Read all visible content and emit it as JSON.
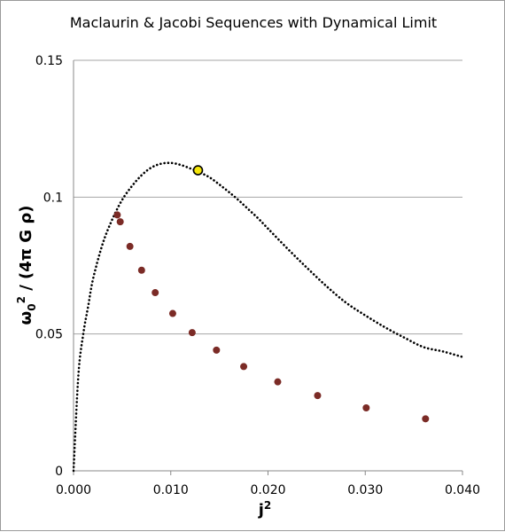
{
  "chart_data": {
    "type": "scatter",
    "title": "Maclaurin & Jacobi Sequences with Dynamical Limit",
    "xlabel": "j",
    "xlabel_sup": "2",
    "ylabel": "ω",
    "ylabel_sub": "0",
    "ylabel_sup": "2",
    "ylabel_rest": " / (4π G ρ)",
    "xlim": [
      0,
      0.04
    ],
    "ylim": [
      0,
      0.15
    ],
    "x_ticks": [
      {
        "value": 0.0,
        "label": "0.000"
      },
      {
        "value": 0.01,
        "label": "0.010"
      },
      {
        "value": 0.02,
        "label": "0.020"
      },
      {
        "value": 0.03,
        "label": "0.030"
      },
      {
        "value": 0.04,
        "label": "0.040"
      }
    ],
    "y_ticks": [
      {
        "value": 0,
        "label": "0"
      },
      {
        "value": 0.05,
        "label": "0.05"
      },
      {
        "value": 0.1,
        "label": "0.1"
      },
      {
        "value": 0.15,
        "label": "0.15"
      }
    ],
    "grid": "horizontal",
    "series": [
      {
        "style": "dotted-line",
        "color": "#000000",
        "points": [
          [
            0.0,
            0.0
          ],
          [
            0.0005,
            0.035
          ],
          [
            0.001,
            0.05
          ],
          [
            0.0015,
            0.06
          ],
          [
            0.002,
            0.07
          ],
          [
            0.003,
            0.083
          ],
          [
            0.004,
            0.092
          ],
          [
            0.005,
            0.099
          ],
          [
            0.006,
            0.104
          ],
          [
            0.007,
            0.108
          ],
          [
            0.008,
            0.1108
          ],
          [
            0.009,
            0.1122
          ],
          [
            0.01,
            0.1125
          ],
          [
            0.011,
            0.1118
          ],
          [
            0.012,
            0.1105
          ],
          [
            0.013,
            0.109
          ],
          [
            0.014,
            0.1072
          ],
          [
            0.015,
            0.1046
          ],
          [
            0.016,
            0.1018
          ],
          [
            0.017,
            0.0988
          ],
          [
            0.018,
            0.0955
          ],
          [
            0.019,
            0.0922
          ],
          [
            0.02,
            0.0885
          ],
          [
            0.022,
            0.0812
          ],
          [
            0.024,
            0.0742
          ],
          [
            0.026,
            0.0675
          ],
          [
            0.028,
            0.0615
          ],
          [
            0.03,
            0.0568
          ],
          [
            0.032,
            0.0525
          ],
          [
            0.034,
            0.0487
          ],
          [
            0.036,
            0.0452
          ],
          [
            0.038,
            0.0436
          ],
          [
            0.04,
            0.0416
          ]
        ]
      },
      {
        "style": "markers",
        "color": "#7b2b26",
        "points": [
          [
            0.0045,
            0.0935
          ],
          [
            0.0048,
            0.091
          ],
          [
            0.0058,
            0.082
          ],
          [
            0.007,
            0.0733
          ],
          [
            0.0084,
            0.0651
          ],
          [
            0.0102,
            0.0575
          ],
          [
            0.0122,
            0.0505
          ],
          [
            0.0147,
            0.0441
          ],
          [
            0.0175,
            0.0381
          ],
          [
            0.021,
            0.0325
          ],
          [
            0.0251,
            0.0275
          ],
          [
            0.0301,
            0.023
          ],
          [
            0.0362,
            0.019
          ]
        ]
      },
      {
        "style": "highlight-marker",
        "color": "#f5e60a",
        "points": [
          [
            0.0128,
            0.1098
          ]
        ]
      }
    ]
  }
}
